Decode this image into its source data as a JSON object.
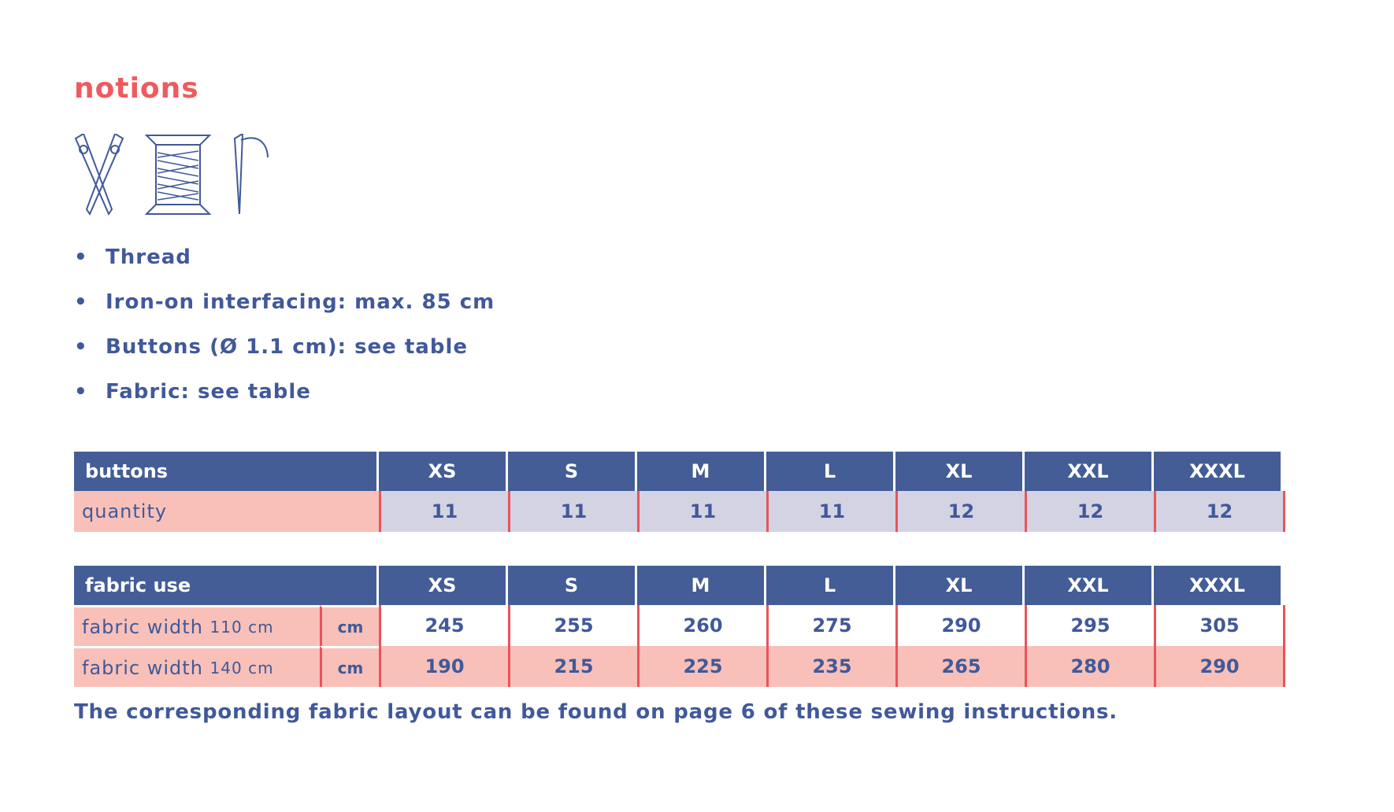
{
  "title": "notions",
  "bullets": [
    "Thread",
    "Iron-on interfacing: max. 85 cm",
    "Buttons (Ø 1.1 cm): see table",
    "Fabric: see table"
  ],
  "buttons_table": {
    "header": [
      "buttons",
      "XS",
      "S",
      "M",
      "L",
      "XL",
      "XXL",
      "XXXL"
    ],
    "rows": [
      {
        "label": "quantity",
        "values": [
          11,
          11,
          11,
          11,
          12,
          12,
          12
        ]
      }
    ]
  },
  "fabric_table": {
    "header": [
      "fabric use",
      "XS",
      "S",
      "M",
      "L",
      "XL",
      "XXL",
      "XXXL"
    ],
    "rows": [
      {
        "label": "fabric width",
        "width": "110 cm",
        "unit": "cm",
        "values": [
          245,
          255,
          260,
          275,
          290,
          295,
          305
        ]
      },
      {
        "label": "fabric width",
        "width": "140 cm",
        "unit": "cm",
        "values": [
          190,
          215,
          225,
          235,
          265,
          280,
          290
        ]
      }
    ]
  },
  "note": "The corresponding fabric layout can be found on page 6 of these sewing instructions."
}
